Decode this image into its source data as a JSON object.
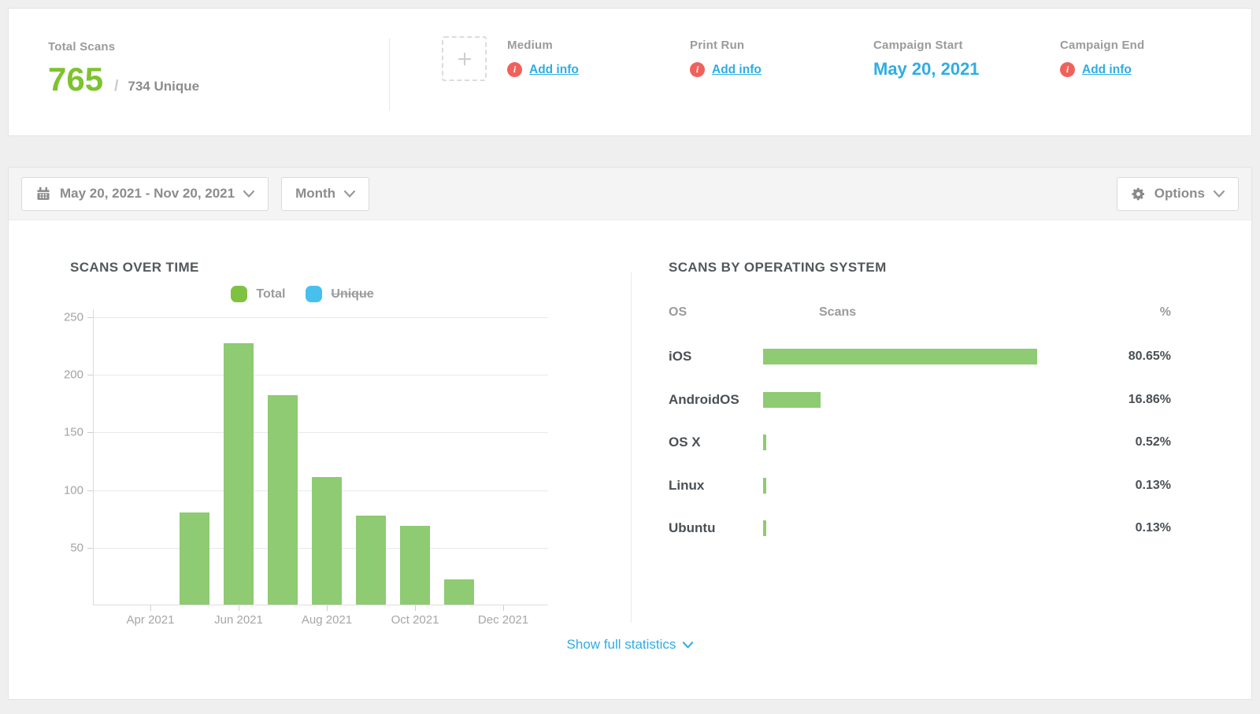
{
  "summary": {
    "total_label": "Total Scans",
    "total_value": "765",
    "divider": "/",
    "unique_value": "734 Unique",
    "medium": {
      "label": "Medium",
      "link": "Add info"
    },
    "print_run": {
      "label": "Print Run",
      "link": "Add info"
    },
    "campaign_start": {
      "label": "Campaign Start",
      "value": "May 20, 2021"
    },
    "campaign_end": {
      "label": "Campaign End",
      "link": "Add info"
    }
  },
  "toolbar": {
    "date_range": "May 20, 2021 - Nov 20, 2021",
    "interval": "Month",
    "options": "Options"
  },
  "scans_over_time": {
    "title": "SCANS OVER TIME",
    "legend": [
      {
        "name": "Total",
        "color": "#7fc241",
        "active": true
      },
      {
        "name": "Unique",
        "color": "#47c0ee",
        "active": false
      }
    ]
  },
  "scans_by_os": {
    "title": "SCANS BY OPERATING SYSTEM",
    "columns": {
      "os": "OS",
      "scans": "Scans",
      "pct": "%"
    },
    "bar_color": "#8ecb73",
    "rows": [
      {
        "os": "iOS",
        "pct": "80.65%",
        "pct_value": 80.65
      },
      {
        "os": "AndroidOS",
        "pct": "16.86%",
        "pct_value": 16.86
      },
      {
        "os": "OS X",
        "pct": "0.52%",
        "pct_value": 0.52
      },
      {
        "os": "Linux",
        "pct": "0.13%",
        "pct_value": 0.13
      },
      {
        "os": "Ubuntu",
        "pct": "0.13%",
        "pct_value": 0.13
      }
    ]
  },
  "footer": {
    "show_full_statistics": "Show full statistics"
  },
  "colors": {
    "accent_green": "#7dc32e",
    "bar_green": "#8ecb73",
    "legend_green": "#7fc241",
    "legend_blue": "#47c0ee",
    "link_blue": "#2fade3",
    "alert_red": "#f0615c"
  },
  "chart_data": [
    {
      "type": "bar",
      "title": "SCANS OVER TIME",
      "categories": [
        "Apr 2021",
        "May 2021",
        "Jun 2021",
        "Jul 2021",
        "Aug 2021",
        "Sep 2021",
        "Oct 2021",
        "Nov 2021",
        "Dec 2021"
      ],
      "series": [
        {
          "name": "Total",
          "color": "#8ecb73",
          "visible": true,
          "values": [
            null,
            80,
            227,
            182,
            111,
            77,
            68,
            22,
            null
          ]
        },
        {
          "name": "Unique",
          "color": "#47c0ee",
          "visible": false,
          "values": null
        }
      ],
      "xlabel": "",
      "ylabel": "",
      "ylim": [
        0,
        250
      ],
      "yticks": [
        50,
        100,
        150,
        200,
        250
      ],
      "xtick_labels_visible": [
        "Apr 2021",
        "Jun 2021",
        "Aug 2021",
        "Oct 2021",
        "Dec 2021"
      ],
      "grid": true,
      "legend_position": "top"
    },
    {
      "type": "bar",
      "orientation": "horizontal",
      "title": "SCANS BY OPERATING SYSTEM",
      "categories": [
        "iOS",
        "AndroidOS",
        "OS X",
        "Linux",
        "Ubuntu"
      ],
      "values": [
        80.65,
        16.86,
        0.52,
        0.13,
        0.13
      ],
      "unit": "%",
      "columns": [
        "OS",
        "Scans",
        "%"
      ],
      "xlim": [
        0,
        100
      ]
    }
  ]
}
